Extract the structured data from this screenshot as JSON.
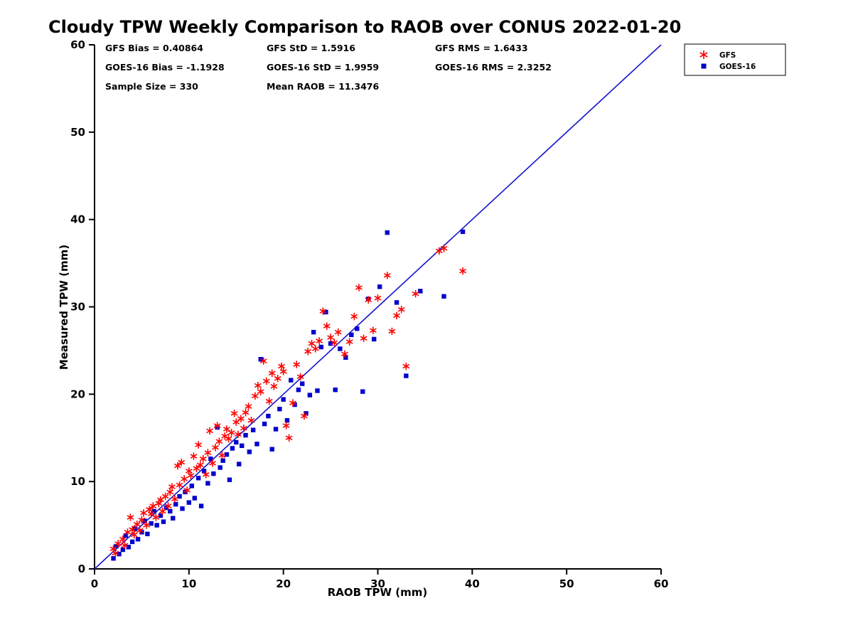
{
  "stats": {
    "gfs_bias": "GFS Bias = 0.40864",
    "gfs_std": "GFS StD = 1.5916",
    "gfs_rms": "GFS RMS = 1.6433",
    "goes_bias": "GOES-16 Bias = -1.1928",
    "goes_std": "GOES-16 StD = 1.9959",
    "goes_rms": "GOES-16 RMS = 2.3252",
    "sample_size": "Sample Size = 330",
    "mean_raob": "Mean RAOB = 11.3476"
  },
  "chart_data": {
    "type": "scatter",
    "title": "Cloudy TPW Weekly Comparison to RAOB over CONUS 2022-01-20",
    "xlabel": "RAOB TPW (mm)",
    "ylabel": "Measured TPW (mm)",
    "xlim": [
      0,
      60
    ],
    "ylim": [
      0,
      60
    ],
    "xticks": [
      0,
      10,
      20,
      30,
      40,
      50,
      60
    ],
    "yticks": [
      0,
      10,
      20,
      30,
      40,
      50,
      60
    ],
    "grid": false,
    "legend_position": "top-right-outside",
    "axis_color": "#000000",
    "reference_line": {
      "from": [
        0,
        0
      ],
      "to": [
        60,
        60
      ],
      "color": "#1414CC"
    },
    "series": [
      {
        "name": "GFS",
        "marker": "asterisk",
        "color": "#FF0000",
        "points": [
          [
            2,
            2.3
          ],
          [
            2.2,
            1.8
          ],
          [
            2.5,
            2.9
          ],
          [
            3,
            3.4
          ],
          [
            3.2,
            2.7
          ],
          [
            3.5,
            4.2
          ],
          [
            3.8,
            5.9
          ],
          [
            4,
            4.5
          ],
          [
            4.2,
            3.9
          ],
          [
            4.5,
            5.1
          ],
          [
            4.8,
            4.4
          ],
          [
            5,
            5.6
          ],
          [
            5.2,
            6.4
          ],
          [
            5.5,
            5
          ],
          [
            5.8,
            6.8
          ],
          [
            6,
            6.3
          ],
          [
            6.2,
            7.2
          ],
          [
            6.5,
            5.9
          ],
          [
            6.8,
            7.5
          ],
          [
            7,
            7.9
          ],
          [
            7.2,
            6.6
          ],
          [
            7.5,
            8.3
          ],
          [
            7.8,
            7.2
          ],
          [
            8,
            8.8
          ],
          [
            8.2,
            9.4
          ],
          [
            8.5,
            8
          ],
          [
            8.8,
            11.8
          ],
          [
            9,
            9.6
          ],
          [
            9.2,
            12.2
          ],
          [
            9.5,
            10.3
          ],
          [
            9.8,
            9
          ],
          [
            10,
            11.2
          ],
          [
            10.2,
            10.7
          ],
          [
            10.5,
            12.9
          ],
          [
            10.8,
            11.5
          ],
          [
            11,
            14.2
          ],
          [
            11.2,
            11.9
          ],
          [
            11.5,
            12.6
          ],
          [
            11.8,
            10.8
          ],
          [
            12,
            13.3
          ],
          [
            12.2,
            15.8
          ],
          [
            12.5,
            12.1
          ],
          [
            12.8,
            13.9
          ],
          [
            13,
            16.4
          ],
          [
            13.2,
            14.6
          ],
          [
            13.5,
            13
          ],
          [
            13.8,
            15.2
          ],
          [
            14,
            16
          ],
          [
            14.2,
            14.9
          ],
          [
            14.5,
            15.6
          ],
          [
            14.8,
            17.8
          ],
          [
            15,
            16.8
          ],
          [
            15.2,
            15.4
          ],
          [
            15.5,
            17.2
          ],
          [
            15.8,
            16.1
          ],
          [
            16,
            17.9
          ],
          [
            16.3,
            18.6
          ],
          [
            16.6,
            17
          ],
          [
            17,
            19.8
          ],
          [
            17.3,
            21
          ],
          [
            17.6,
            20.3
          ],
          [
            17.9,
            23.8
          ],
          [
            18.2,
            21.5
          ],
          [
            18.5,
            19.2
          ],
          [
            18.8,
            22.4
          ],
          [
            19,
            20.9
          ],
          [
            19.4,
            21.8
          ],
          [
            19.8,
            23.2
          ],
          [
            20,
            22.6
          ],
          [
            20.3,
            16.4
          ],
          [
            20.6,
            15
          ],
          [
            21,
            19
          ],
          [
            21.4,
            23.4
          ],
          [
            21.8,
            22
          ],
          [
            22.2,
            17.5
          ],
          [
            22.6,
            24.9
          ],
          [
            23,
            25.8
          ],
          [
            23.4,
            25.2
          ],
          [
            23.8,
            26.1
          ],
          [
            24.2,
            29.5
          ],
          [
            24.6,
            27.8
          ],
          [
            25,
            26.5
          ],
          [
            25.4,
            25.9
          ],
          [
            25.8,
            27.1
          ],
          [
            26.5,
            24.6
          ],
          [
            27,
            26
          ],
          [
            27.5,
            28.9
          ],
          [
            28,
            32.2
          ],
          [
            28.5,
            26.4
          ],
          [
            29,
            30.8
          ],
          [
            29.5,
            27.3
          ],
          [
            30,
            31
          ],
          [
            31,
            33.6
          ],
          [
            31.5,
            27.2
          ],
          [
            32,
            29
          ],
          [
            32.5,
            29.7
          ],
          [
            33,
            23.2
          ],
          [
            34,
            31.5
          ],
          [
            36.5,
            36.4
          ],
          [
            37,
            36.7
          ],
          [
            39,
            34.1
          ]
        ]
      },
      {
        "name": "GOES-16",
        "marker": "square",
        "color": "#0000CD",
        "points": [
          [
            2,
            1.2
          ],
          [
            2.3,
            2.6
          ],
          [
            2.6,
            1.7
          ],
          [
            3,
            2.2
          ],
          [
            3.3,
            3.8
          ],
          [
            3.6,
            2.5
          ],
          [
            4,
            3.1
          ],
          [
            4.3,
            4.6
          ],
          [
            4.6,
            3.4
          ],
          [
            5,
            4.2
          ],
          [
            5.3,
            5.5
          ],
          [
            5.6,
            4
          ],
          [
            6,
            5.2
          ],
          [
            6.3,
            6.6
          ],
          [
            6.6,
            5
          ],
          [
            7,
            6.1
          ],
          [
            7.3,
            5.4
          ],
          [
            7.6,
            7
          ],
          [
            8,
            6.6
          ],
          [
            8.3,
            5.8
          ],
          [
            8.6,
            7.4
          ],
          [
            9,
            8.3
          ],
          [
            9.3,
            6.9
          ],
          [
            9.6,
            8.8
          ],
          [
            10,
            7.6
          ],
          [
            10.3,
            9.5
          ],
          [
            10.6,
            8.1
          ],
          [
            11,
            10.4
          ],
          [
            11.3,
            7.2
          ],
          [
            11.6,
            11.2
          ],
          [
            12,
            9.8
          ],
          [
            12.3,
            12.6
          ],
          [
            12.6,
            10.9
          ],
          [
            13,
            16.2
          ],
          [
            13.3,
            11.6
          ],
          [
            13.6,
            12.4
          ],
          [
            14,
            13.1
          ],
          [
            14.3,
            10.2
          ],
          [
            14.6,
            13.8
          ],
          [
            15,
            14.5
          ],
          [
            15.3,
            12
          ],
          [
            15.6,
            14.1
          ],
          [
            16,
            15.3
          ],
          [
            16.4,
            13.4
          ],
          [
            16.8,
            15.9
          ],
          [
            17.2,
            14.3
          ],
          [
            17.6,
            24
          ],
          [
            18,
            16.6
          ],
          [
            18.4,
            17.5
          ],
          [
            18.8,
            13.7
          ],
          [
            19.2,
            16
          ],
          [
            19.6,
            18.3
          ],
          [
            20,
            19.4
          ],
          [
            20.4,
            17
          ],
          [
            20.8,
            21.6
          ],
          [
            21.2,
            18.8
          ],
          [
            21.6,
            20.5
          ],
          [
            22,
            21.2
          ],
          [
            22.4,
            17.8
          ],
          [
            22.8,
            19.9
          ],
          [
            23.2,
            27.1
          ],
          [
            23.6,
            20.4
          ],
          [
            24,
            25.4
          ],
          [
            24.5,
            29.4
          ],
          [
            25,
            25.8
          ],
          [
            25.5,
            20.5
          ],
          [
            26,
            25.2
          ],
          [
            26.6,
            24.2
          ],
          [
            27.2,
            26.8
          ],
          [
            27.8,
            27.5
          ],
          [
            28.4,
            20.3
          ],
          [
            29,
            30.9
          ],
          [
            29.6,
            26.3
          ],
          [
            30.2,
            32.3
          ],
          [
            31,
            38.5
          ],
          [
            32,
            30.5
          ],
          [
            33,
            22.1
          ],
          [
            34.5,
            31.8
          ],
          [
            37,
            31.2
          ],
          [
            39,
            38.6
          ]
        ]
      }
    ]
  }
}
